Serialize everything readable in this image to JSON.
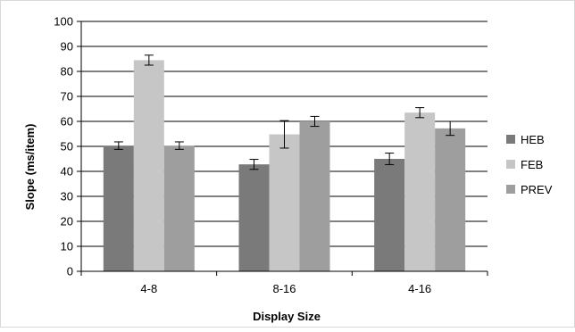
{
  "chart_data": {
    "type": "bar",
    "title": "",
    "xlabel": "Display Size",
    "ylabel": "Slope (ms/item)",
    "categories": [
      "4-8",
      "8-16",
      "4-16"
    ],
    "ylim": [
      0,
      100
    ],
    "yticks": [
      0,
      10,
      20,
      30,
      40,
      50,
      60,
      70,
      80,
      90,
      100
    ],
    "grid": "horizontal",
    "legend_position": "right",
    "error_bars": true,
    "series": [
      {
        "name": "HEB",
        "color": "#7a7a7a",
        "values": [
          50.3,
          42.8,
          45.0
        ],
        "errors": [
          1.5,
          2.0,
          2.3
        ]
      },
      {
        "name": "FEB",
        "color": "#c6c6c6",
        "values": [
          84.5,
          54.8,
          63.5
        ],
        "errors": [
          2.0,
          5.5,
          2.0
        ]
      },
      {
        "name": "PREV",
        "color": "#9e9e9e",
        "values": [
          50.3,
          60.0,
          57.2
        ],
        "errors": [
          1.5,
          2.0,
          2.8
        ]
      }
    ]
  }
}
